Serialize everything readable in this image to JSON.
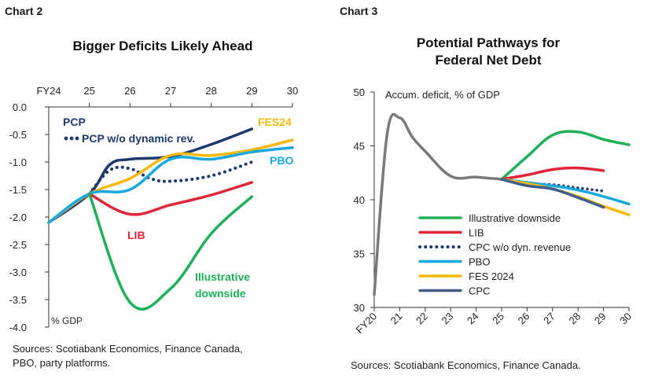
{
  "colors": {
    "navy": "#1f3a6e",
    "green": "#1fb05a",
    "red": "#e2263a",
    "sky": "#1aa8e0",
    "yellow": "#f7b90f",
    "gray": "#7a7a7a",
    "slate": "#3f5e8c",
    "axis": "#333333"
  },
  "chart_data": [
    {
      "label": "Chart 2",
      "type": "line",
      "title": "Bigger Deficits Likely Ahead",
      "x_position": "top",
      "x_ticks": [
        "FY24",
        "25",
        "26",
        "27",
        "28",
        "29",
        "30"
      ],
      "xlim": [
        2024,
        2030
      ],
      "ylim": [
        -4.0,
        0.0
      ],
      "y_ticks": [
        0.0,
        -0.5,
        -1.0,
        -1.5,
        -2.0,
        -2.5,
        -3.0,
        -3.5,
        -4.0
      ],
      "y_tick_labels": [
        "0.0",
        "-0.5",
        "-1.0",
        "-1.5",
        "-2.0",
        "-2.5",
        "-3.0",
        "-3.5",
        "-4.0"
      ],
      "axis_note": "% GDP",
      "series": [
        {
          "name": "PCP",
          "color": "navy",
          "style": "solid",
          "smooth": true,
          "x": [
            2024.0,
            2025.0,
            2025.5,
            2026.0,
            2027.0,
            2028.0,
            2029.0
          ],
          "y": [
            -2.1,
            -1.58,
            -1.05,
            -0.95,
            -0.9,
            -0.68,
            -0.4
          ]
        },
        {
          "name": "PCP w/o dynamic rev.",
          "color": "navy",
          "style": "dotted",
          "smooth": true,
          "x": [
            2025.0,
            2025.5,
            2026.0,
            2026.5,
            2027.0,
            2028.0,
            2029.0
          ],
          "y": [
            -1.58,
            -1.15,
            -1.12,
            -1.3,
            -1.35,
            -1.25,
            -1.0
          ]
        },
        {
          "name": "FES24",
          "color": "yellow",
          "style": "solid",
          "smooth": true,
          "x": [
            2024.0,
            2025.0,
            2026.0,
            2027.0,
            2028.0,
            2029.0,
            2030.0
          ],
          "y": [
            -2.1,
            -1.58,
            -1.3,
            -0.88,
            -0.88,
            -0.78,
            -0.6
          ]
        },
        {
          "name": "PBO",
          "color": "sky",
          "style": "solid",
          "smooth": true,
          "x": [
            2024.0,
            2025.0,
            2026.0,
            2027.0,
            2028.0,
            2029.0,
            2030.0
          ],
          "y": [
            -2.1,
            -1.58,
            -1.5,
            -0.95,
            -0.95,
            -0.82,
            -0.74
          ]
        },
        {
          "name": "LIB",
          "color": "red",
          "style": "solid",
          "smooth": true,
          "x": [
            2025.0,
            2026.0,
            2027.0,
            2028.0,
            2029.0
          ],
          "y": [
            -1.58,
            -1.95,
            -1.78,
            -1.6,
            -1.37
          ]
        },
        {
          "name": "Illustrative downside",
          "color": "green",
          "style": "solid",
          "smooth": true,
          "x": [
            2025.0,
            2026.0,
            2027.0,
            2028.0,
            2029.0
          ],
          "y": [
            -1.58,
            -3.55,
            -3.3,
            -2.3,
            -1.63
          ]
        }
      ],
      "annotations": [
        {
          "text": "PCP",
          "color": "navy"
        },
        {
          "text": "PCP w/o dynamic rev.",
          "color": "navy",
          "marker": "dots"
        },
        {
          "text": "FES24",
          "color": "yellow"
        },
        {
          "text": "PBO",
          "color": "sky"
        },
        {
          "text": "LIB",
          "color": "red"
        },
        {
          "lines": [
            "Illustrative",
            "downside"
          ],
          "color": "green"
        }
      ],
      "source": [
        "Sources: Scotiabank Economics, Finance Canada,",
        "PBO, party platforms."
      ]
    },
    {
      "label": "Chart 3",
      "type": "line",
      "title": [
        "Potential Pathways for",
        "Federal Net Debt"
      ],
      "x_ticks": [
        "FY20",
        "21",
        "22",
        "23",
        "24",
        "25",
        "26",
        "27",
        "28",
        "29",
        "30"
      ],
      "xlim": [
        2020,
        2030
      ],
      "ylim": [
        30,
        50
      ],
      "y_ticks": [
        30,
        35,
        40,
        45,
        50
      ],
      "axis_note": "Accum. deficit, % of GDP",
      "legend_position": "lower-center",
      "history": {
        "color": "gray",
        "smooth": true,
        "x": [
          2020.0,
          2020.5,
          2021.0,
          2021.5,
          2022.0,
          2023.0,
          2024.0,
          2025.0
        ],
        "y": [
          31.2,
          46.0,
          47.6,
          45.8,
          44.5,
          42.2,
          42.1,
          41.9
        ]
      },
      "series": [
        {
          "name": "Illustrative downside",
          "color": "green",
          "style": "solid",
          "smooth": true,
          "x": [
            2025.0,
            2026.0,
            2027.0,
            2028.0,
            2029.0,
            2030.0
          ],
          "y": [
            41.9,
            44.0,
            46.0,
            46.3,
            45.6,
            45.1
          ]
        },
        {
          "name": "LIB",
          "color": "red",
          "style": "solid",
          "smooth": true,
          "x": [
            2025.0,
            2026.0,
            2027.0,
            2028.0,
            2029.0
          ],
          "y": [
            41.9,
            42.3,
            42.8,
            42.95,
            42.7
          ]
        },
        {
          "name": "CPC w/o dyn. revenue",
          "color": "navy",
          "style": "dotted",
          "smooth": true,
          "x": [
            2025.0,
            2026.0,
            2027.0,
            2028.0,
            2029.0
          ],
          "y": [
            41.9,
            41.5,
            41.4,
            41.1,
            40.8
          ]
        },
        {
          "name": "PBO",
          "color": "sky",
          "style": "solid",
          "smooth": true,
          "x": [
            2025.0,
            2026.0,
            2027.0,
            2028.0,
            2029.0,
            2030.0
          ],
          "y": [
            41.9,
            41.6,
            41.3,
            40.9,
            40.3,
            39.6
          ]
        },
        {
          "name": "FES 2024",
          "color": "yellow",
          "style": "solid",
          "smooth": true,
          "x": [
            2025.0,
            2026.0,
            2027.0,
            2028.0,
            2029.0,
            2030.0
          ],
          "y": [
            41.9,
            41.5,
            41.0,
            40.3,
            39.4,
            38.6
          ]
        },
        {
          "name": "CPC",
          "color": "slate",
          "style": "solid",
          "smooth": true,
          "x": [
            2025.0,
            2026.0,
            2027.0,
            2028.0,
            2029.0
          ],
          "y": [
            41.9,
            41.3,
            41.0,
            40.2,
            39.3
          ]
        }
      ],
      "source": [
        "Sources: Scotiabank Economics, Finance Canada."
      ]
    }
  ]
}
